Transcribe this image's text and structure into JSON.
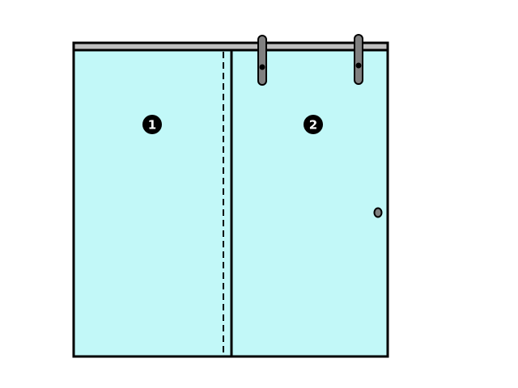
{
  "panels": [
    {
      "number": "1",
      "kind": "fixed"
    },
    {
      "number": "2",
      "kind": "sliding"
    }
  ],
  "colors": {
    "glass": "#c2f8f8",
    "frame": "#000000",
    "rail": "#c0c0c0",
    "hanger": "#808080",
    "badge_fill": "#000000",
    "badge_text": "#ffffff",
    "background": "#ffffff"
  },
  "icons": {
    "hanger": "roller-hanger-icon",
    "handle": "knob-handle-icon"
  }
}
